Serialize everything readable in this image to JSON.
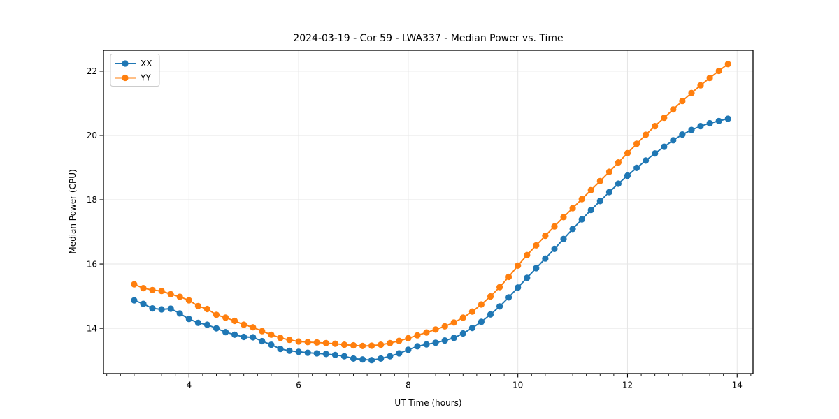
{
  "figure": {
    "title": "2024-03-19 - Cor 59 - LWA337 - Median Power vs. Time",
    "xlabel": "UT Time (hours)",
    "ylabel": "Median Power (CPU)",
    "background_color": "#ffffff",
    "grid_color": "#e6e6e6",
    "spine_color": "#000000",
    "text_color": "#000000"
  },
  "legend": {
    "entries": [
      "XX",
      "YY"
    ]
  },
  "chart_data": {
    "type": "line",
    "title": "2024-03-19 - Cor 59 - LWA337 - Median Power vs. Time",
    "xlabel": "UT Time (hours)",
    "ylabel": "Median Power (CPU)",
    "xlim": [
      2.44,
      14.29
    ],
    "ylim": [
      12.59,
      22.65
    ],
    "x_ticks": [
      4,
      6,
      8,
      10,
      12,
      14
    ],
    "y_ticks": [
      14,
      16,
      18,
      20,
      22
    ],
    "x_minor_step": 0.25,
    "grid": true,
    "legend_position": "upper-left",
    "marker": "circle",
    "x": [
      3.0,
      3.167,
      3.333,
      3.5,
      3.667,
      3.833,
      4.0,
      4.167,
      4.333,
      4.5,
      4.667,
      4.833,
      5.0,
      5.167,
      5.333,
      5.5,
      5.667,
      5.833,
      6.0,
      6.167,
      6.333,
      6.5,
      6.667,
      6.833,
      7.0,
      7.167,
      7.333,
      7.5,
      7.667,
      7.833,
      8.0,
      8.167,
      8.333,
      8.5,
      8.667,
      8.833,
      9.0,
      9.167,
      9.333,
      9.5,
      9.667,
      9.833,
      10.0,
      10.167,
      10.333,
      10.5,
      10.667,
      10.833,
      11.0,
      11.167,
      11.333,
      11.5,
      11.667,
      11.833,
      12.0,
      12.167,
      12.333,
      12.5,
      12.667,
      12.833,
      13.0,
      13.167,
      13.333,
      13.5,
      13.667,
      13.833
    ],
    "series": [
      {
        "name": "XX",
        "color": "#1f77b4",
        "values": [
          14.87,
          14.76,
          14.62,
          14.59,
          14.61,
          14.46,
          14.29,
          14.17,
          14.11,
          14.0,
          13.88,
          13.8,
          13.73,
          13.72,
          13.6,
          13.49,
          13.36,
          13.3,
          13.27,
          13.24,
          13.22,
          13.2,
          13.17,
          13.13,
          13.06,
          13.03,
          13.01,
          13.06,
          13.13,
          13.22,
          13.33,
          13.44,
          13.5,
          13.55,
          13.62,
          13.7,
          13.84,
          14.01,
          14.2,
          14.43,
          14.68,
          14.96,
          15.27,
          15.57,
          15.87,
          16.17,
          16.47,
          16.78,
          17.09,
          17.39,
          17.68,
          17.96,
          18.24,
          18.5,
          18.75,
          18.99,
          19.22,
          19.44,
          19.65,
          19.85,
          20.03,
          20.17,
          20.29,
          20.38,
          20.45,
          20.52
        ]
      },
      {
        "name": "YY",
        "color": "#ff7f0e",
        "values": [
          15.37,
          15.25,
          15.19,
          15.16,
          15.06,
          14.98,
          14.87,
          14.69,
          14.6,
          14.42,
          14.33,
          14.23,
          14.11,
          14.03,
          13.91,
          13.8,
          13.7,
          13.64,
          13.59,
          13.57,
          13.56,
          13.54,
          13.52,
          13.49,
          13.47,
          13.45,
          13.46,
          13.49,
          13.54,
          13.61,
          13.69,
          13.78,
          13.87,
          13.96,
          14.06,
          14.18,
          14.33,
          14.52,
          14.74,
          14.99,
          15.28,
          15.6,
          15.95,
          16.28,
          16.58,
          16.88,
          17.17,
          17.46,
          17.74,
          18.02,
          18.3,
          18.58,
          18.87,
          19.16,
          19.45,
          19.74,
          20.02,
          20.29,
          20.55,
          20.81,
          21.07,
          21.32,
          21.56,
          21.79,
          22.01,
          22.22
        ]
      }
    ]
  }
}
